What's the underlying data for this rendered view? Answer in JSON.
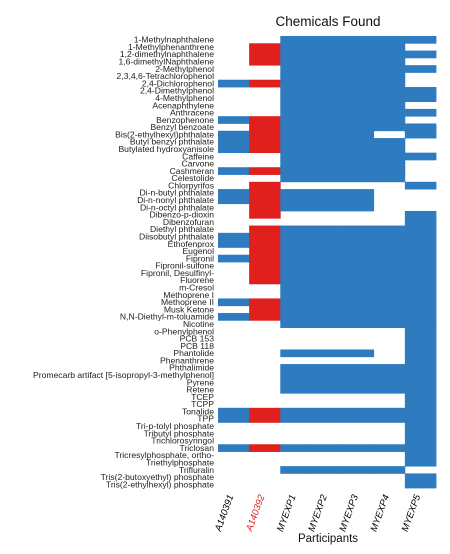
{
  "chart_data": {
    "type": "heatmap",
    "title": "Chemicals Found",
    "xlabel": "Participants",
    "ylabel": "",
    "legend": "none",
    "grid": false,
    "participants": [
      "A140391",
      "A140392",
      "MYEXP1",
      "MYEXP2",
      "MYEXP3",
      "MYEXP4",
      "MYEXP5"
    ],
    "participant_colors": [
      "#000000",
      "#e0201c",
      "#000000",
      "#000000",
      "#000000",
      "#000000",
      "#000000"
    ],
    "cell_colors": [
      "#2f7bc0",
      "#e0201c",
      "#2f7bc0",
      "#2f7bc0",
      "#2f7bc0",
      "#2f7bc0",
      "#2f7bc0"
    ],
    "chemicals": [
      "1-Methylnaphthalene",
      "1-Methylphenanthrene",
      "1,2-dimethylnaphthalene",
      "1,6-dimethylNaphthalene",
      "2-Methylphenol",
      "2,3,4,6-Tetrachlorophenol",
      "2,4-Dichlorophenol",
      "2,4-Dimethylphenol",
      "4-Methylphenol",
      "Acenaphthylene",
      "Anthracene",
      "Benzophenone",
      "Benzyl benzoate",
      "Bis(2-ethylhexyl)phthalate",
      "Butyl benzyl phthalate",
      "Butylated hydroxyanisole",
      "Caffeine",
      "Carvone",
      "Cashmeran",
      "Celestolide",
      "Chlorpyrifos",
      "Di-n-butyl phthalate",
      "Di-n-nonyl phthalate",
      "Di-n-octyl phthalate",
      "Dibenzo-p-dioxin",
      "Dibenzofuran",
      "Diethyl phthalate",
      "Diisobutyl phthalate",
      "Ethofenprox",
      "Eugenol",
      "Fipronil",
      "Fipronil-sulfone",
      "Fipronil, Desulfinyl-",
      "Fluorene",
      "m-Cresol",
      "Methoprene I",
      "Methoprene II",
      "Musk Ketone",
      "N,N-Diethyl-m-toluamide",
      "Nicotine",
      "o-Phenylphenol",
      "PCB 153",
      "PCB 118",
      "Phantolide",
      "Phenanthrene",
      "Phthalimide",
      "Promecarb artifact [5-isopropyl-3-methylphenol]",
      "Pyrene",
      "Retene",
      "TCEP",
      "TCPP",
      "Tonalide",
      "TPP",
      "Tri-p-tolyl phosphate",
      "Tributyl phosphate",
      "Trichlorosyringol",
      "Triclosan",
      "Tricresylphosphate, ortho-",
      "Triethylphosphate",
      "Trifluralin",
      "Tris(2-butoxyethyl) phosphate",
      "Tris(2-ethylhexyl) phosphate"
    ],
    "found": [
      [
        0,
        0,
        1,
        1,
        1,
        1,
        1
      ],
      [
        0,
        1,
        1,
        1,
        1,
        1,
        0
      ],
      [
        0,
        1,
        1,
        1,
        1,
        1,
        1
      ],
      [
        0,
        1,
        1,
        1,
        1,
        1,
        0
      ],
      [
        0,
        0,
        1,
        1,
        1,
        1,
        1
      ],
      [
        0,
        0,
        1,
        1,
        1,
        1,
        0
      ],
      [
        1,
        1,
        1,
        1,
        1,
        1,
        0
      ],
      [
        0,
        0,
        1,
        1,
        1,
        1,
        1
      ],
      [
        0,
        0,
        1,
        1,
        1,
        1,
        1
      ],
      [
        0,
        0,
        1,
        1,
        1,
        1,
        0
      ],
      [
        0,
        0,
        1,
        1,
        1,
        1,
        1
      ],
      [
        1,
        1,
        1,
        1,
        1,
        1,
        0
      ],
      [
        0,
        1,
        1,
        1,
        1,
        1,
        1
      ],
      [
        1,
        1,
        1,
        1,
        1,
        0,
        1
      ],
      [
        1,
        1,
        1,
        1,
        1,
        1,
        0
      ],
      [
        1,
        1,
        1,
        1,
        1,
        1,
        0
      ],
      [
        0,
        0,
        1,
        1,
        1,
        1,
        1
      ],
      [
        0,
        0,
        1,
        1,
        1,
        1,
        0
      ],
      [
        1,
        1,
        1,
        1,
        1,
        1,
        0
      ],
      [
        0,
        0,
        1,
        1,
        1,
        1,
        0
      ],
      [
        0,
        1,
        0,
        0,
        0,
        0,
        1
      ],
      [
        1,
        1,
        1,
        1,
        1,
        0,
        0
      ],
      [
        1,
        1,
        1,
        1,
        1,
        0,
        0
      ],
      [
        0,
        1,
        1,
        1,
        1,
        0,
        0
      ],
      [
        0,
        1,
        0,
        0,
        0,
        0,
        1
      ],
      [
        0,
        0,
        0,
        0,
        0,
        0,
        1
      ],
      [
        0,
        1,
        1,
        1,
        1,
        1,
        1
      ],
      [
        1,
        1,
        1,
        1,
        1,
        1,
        1
      ],
      [
        1,
        1,
        1,
        1,
        1,
        1,
        1
      ],
      [
        0,
        1,
        1,
        1,
        1,
        1,
        1
      ],
      [
        1,
        1,
        1,
        1,
        1,
        1,
        1
      ],
      [
        0,
        1,
        1,
        1,
        1,
        1,
        1
      ],
      [
        0,
        1,
        1,
        1,
        1,
        1,
        1
      ],
      [
        0,
        1,
        1,
        1,
        1,
        1,
        1
      ],
      [
        0,
        0,
        1,
        1,
        1,
        1,
        1
      ],
      [
        0,
        0,
        1,
        1,
        1,
        1,
        1
      ],
      [
        1,
        1,
        1,
        1,
        1,
        1,
        1
      ],
      [
        0,
        1,
        1,
        1,
        1,
        1,
        1
      ],
      [
        1,
        1,
        1,
        1,
        1,
        1,
        1
      ],
      [
        0,
        0,
        1,
        1,
        1,
        1,
        1
      ],
      [
        0,
        0,
        0,
        0,
        0,
        0,
        1
      ],
      [
        0,
        0,
        0,
        0,
        0,
        0,
        1
      ],
      [
        0,
        0,
        0,
        0,
        0,
        0,
        1
      ],
      [
        0,
        0,
        1,
        1,
        1,
        0,
        1
      ],
      [
        0,
        0,
        0,
        0,
        0,
        0,
        1
      ],
      [
        0,
        0,
        1,
        1,
        1,
        1,
        1
      ],
      [
        0,
        0,
        1,
        1,
        1,
        1,
        1
      ],
      [
        0,
        0,
        1,
        1,
        1,
        1,
        1
      ],
      [
        0,
        0,
        1,
        1,
        1,
        1,
        1
      ],
      [
        0,
        0,
        0,
        0,
        0,
        0,
        1
      ],
      [
        0,
        0,
        0,
        0,
        0,
        0,
        1
      ],
      [
        1,
        1,
        1,
        1,
        1,
        1,
        1
      ],
      [
        1,
        1,
        1,
        1,
        1,
        1,
        1
      ],
      [
        0,
        0,
        0,
        0,
        0,
        0,
        1
      ],
      [
        0,
        0,
        0,
        0,
        0,
        0,
        1
      ],
      [
        0,
        0,
        0,
        0,
        0,
        0,
        1
      ],
      [
        1,
        1,
        1,
        1,
        1,
        1,
        1
      ],
      [
        0,
        0,
        0,
        0,
        0,
        0,
        1
      ],
      [
        0,
        0,
        0,
        0,
        0,
        0,
        1
      ],
      [
        0,
        0,
        1,
        1,
        1,
        1,
        0
      ],
      [
        0,
        0,
        0,
        0,
        0,
        0,
        1
      ],
      [
        0,
        0,
        0,
        0,
        0,
        0,
        1
      ]
    ]
  }
}
